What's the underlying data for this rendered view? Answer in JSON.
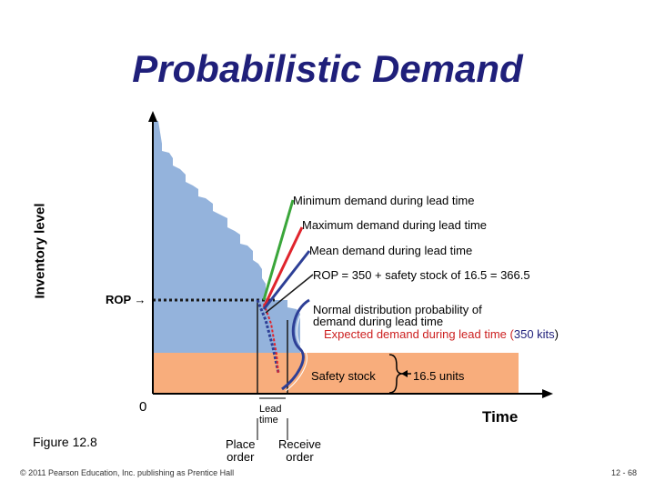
{
  "title": "Probabilistic Demand",
  "y_axis_label": "Inventory level",
  "x_axis_label": "Time",
  "origin_label": "0",
  "rop_label": "ROP →",
  "annotations": {
    "min_demand": "Minimum demand during lead time",
    "max_demand": "Maximum demand during lead time",
    "mean_demand": "Mean demand during lead time",
    "rop_formula": "ROP = 350 + safety stock of 16.5 = 366.5",
    "normal_dist_line1": "Normal distribution probability of",
    "normal_dist_line2": "demand during lead time",
    "expected_demand_prefix": "Expected demand during lead time (",
    "expected_demand_value": "350 kits",
    "expected_demand_suffix": ")",
    "safety_stock": "Safety stock",
    "safety_units": "16.5 units",
    "lead_time_line1": "Lead",
    "lead_time_line2": "time",
    "place_order_line1": "Place",
    "place_order_line2": "order",
    "receive_order_line1": "Receive",
    "receive_order_line2": "order"
  },
  "figure_label": "Figure 12.8",
  "copyright": "© 2011 Pearson Education, Inc. publishing as Prentice Hall",
  "page_number": "12 - 68",
  "colors": {
    "inventory_fill": "#94b3dc",
    "safety_stock_fill": "#f8ad7c",
    "min_line": "#3aa63a",
    "max_line": "#e0242c",
    "mean_line": "#2d3f96",
    "rop_line": "#1a1a1a",
    "title": "#1f1f7a",
    "red_text": "#cc1f1f",
    "blue_text": "#1f1f7a"
  }
}
